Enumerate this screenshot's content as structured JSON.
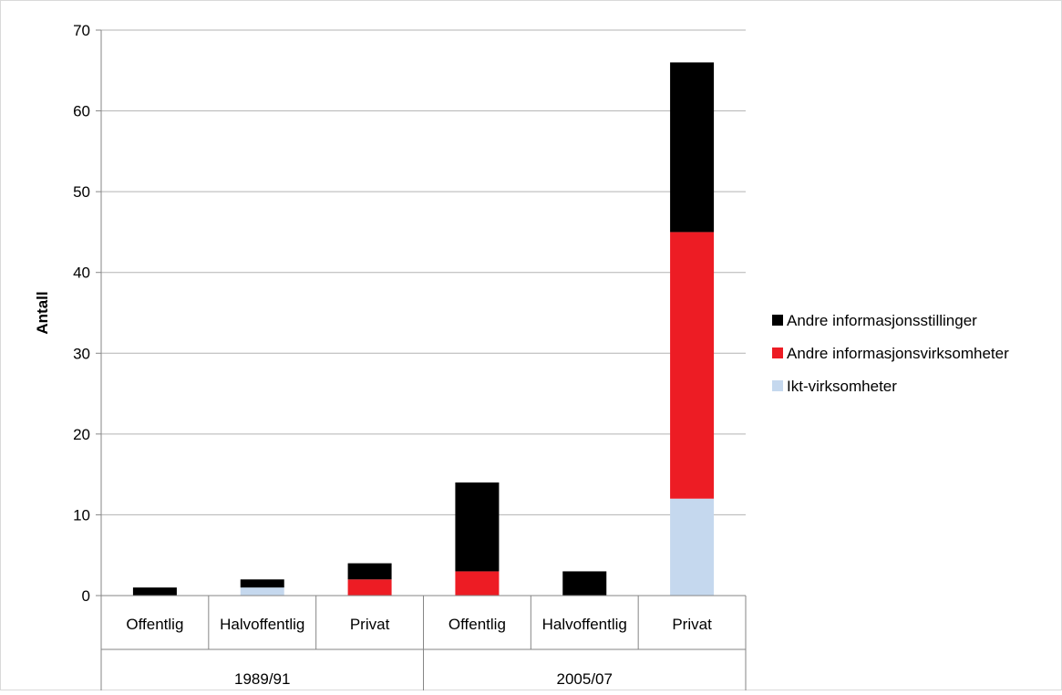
{
  "chart_data": {
    "type": "bar",
    "stacked": true,
    "title": "",
    "xlabel": "",
    "ylabel": "Antall",
    "ylim": [
      0,
      70
    ],
    "yticks": [
      0,
      10,
      20,
      30,
      40,
      50,
      60,
      70
    ],
    "grid": true,
    "legend_position": "right",
    "groups": [
      {
        "label": "1989/91",
        "categories": [
          "Offentlig",
          "Halvoffentlig",
          "Privat"
        ]
      },
      {
        "label": "2005/07",
        "categories": [
          "Offentlig",
          "Halvoffentlig",
          "Privat"
        ]
      }
    ],
    "categories": [
      "Offentlig",
      "Halvoffentlig",
      "Privat",
      "Offentlig",
      "Halvoffentlig",
      "Privat"
    ],
    "series": [
      {
        "name": "Ikt-virksomheter",
        "color": "#c5d8ee",
        "values": [
          0,
          1,
          0,
          0,
          0,
          12
        ]
      },
      {
        "name": "Andre informasjonsvirksomheter",
        "color": "#ed1c24",
        "values": [
          0,
          0,
          2,
          3,
          0,
          33
        ]
      },
      {
        "name": "Andre informasjonsstillinger",
        "color": "#000000",
        "values": [
          1,
          1,
          2,
          11,
          3,
          21
        ]
      }
    ],
    "legend_order": [
      "Andre informasjonsstillinger",
      "Andre informasjonsvirksomheter",
      "Ikt-virksomheter"
    ]
  }
}
